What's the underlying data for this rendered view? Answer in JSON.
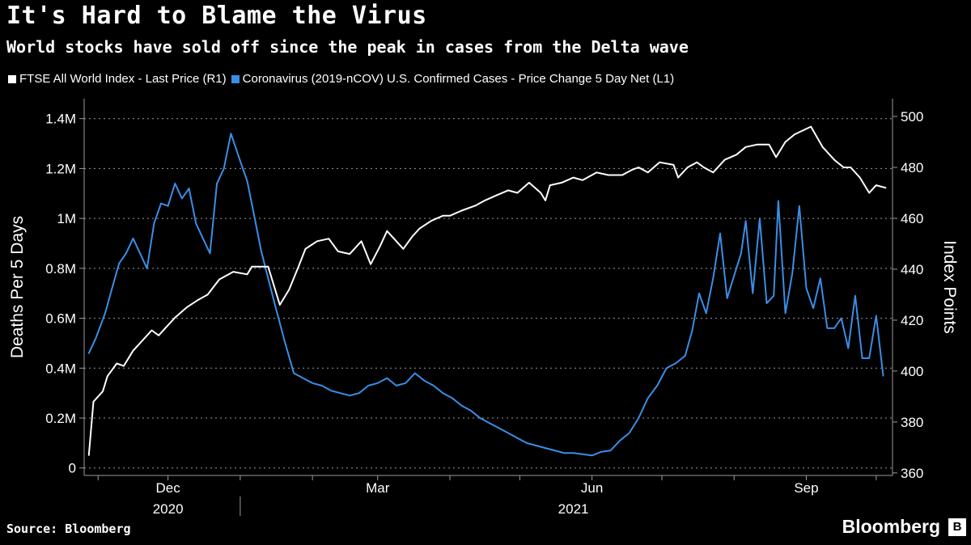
{
  "header": {
    "title": "It's Hard to Blame the Virus",
    "subtitle": "World stocks have sold off since the peak in cases from the Delta wave"
  },
  "footer": {
    "source": "Source: Bloomberg",
    "brand": "Bloomberg",
    "brand_mark": "B"
  },
  "colors": {
    "background": "#000000",
    "stocks": "#ffffff",
    "cases": "#3a8ee6",
    "grid": "#9a9a9a"
  },
  "chart_data": {
    "type": "line",
    "x_type": "date",
    "xlim": [
      "2020-10-26",
      "2021-10-08"
    ],
    "x_ticks": [
      {
        "date": "2020-12-01",
        "label": "Dec"
      },
      {
        "date": "2021-03-01",
        "label": "Mar"
      },
      {
        "date": "2021-06-01",
        "label": "Jun"
      },
      {
        "date": "2021-09-01",
        "label": "Sep"
      }
    ],
    "x_year_labels": [
      {
        "date": "2020-12-01",
        "label": "2020"
      },
      {
        "date": "2021-05-24",
        "label": "2021"
      }
    ],
    "x_year_divider": "2021-01-01",
    "left_axis": {
      "label": "Deaths Per 5 Days",
      "ylim": [
        -30000,
        1480000
      ],
      "ticks": [
        {
          "value": 0,
          "label": "0"
        },
        {
          "value": 200000,
          "label": "0.2M"
        },
        {
          "value": 400000,
          "label": "0.4M"
        },
        {
          "value": 600000,
          "label": "0.6M"
        },
        {
          "value": 800000,
          "label": "0.8M"
        },
        {
          "value": 1000000,
          "label": "1M"
        },
        {
          "value": 1200000,
          "label": "1.2M"
        },
        {
          "value": 1400000,
          "label": "1.4M"
        }
      ]
    },
    "right_axis": {
      "label": "Index Points",
      "ylim": [
        359,
        507
      ],
      "ticks": [
        {
          "value": 360,
          "label": "360"
        },
        {
          "value": 380,
          "label": "380"
        },
        {
          "value": 400,
          "label": "400"
        },
        {
          "value": 420,
          "label": "420"
        },
        {
          "value": 440,
          "label": "440"
        },
        {
          "value": 460,
          "label": "460"
        },
        {
          "value": 480,
          "label": "480"
        },
        {
          "value": 500,
          "label": "500"
        }
      ]
    },
    "grid": "horizontal-dashed",
    "legend_position": "top-left",
    "series": [
      {
        "name": "FTSE All World Index - Last Price (R1)",
        "axis": "right",
        "color": "#ffffff",
        "x": [
          "2020-10-28",
          "2020-10-30",
          "2020-11-03",
          "2020-11-05",
          "2020-11-09",
          "2020-11-12",
          "2020-11-16",
          "2020-11-19",
          "2020-11-24",
          "2020-11-27",
          "2020-12-01",
          "2020-12-04",
          "2020-12-09",
          "2020-12-14",
          "2020-12-18",
          "2020-12-23",
          "2020-12-29",
          "2021-01-04",
          "2021-01-06",
          "2021-01-08",
          "2021-01-13",
          "2021-01-18",
          "2021-01-22",
          "2021-01-26",
          "2021-01-29",
          "2021-02-03",
          "2021-02-08",
          "2021-02-12",
          "2021-02-17",
          "2021-02-22",
          "2021-02-26",
          "2021-03-02",
          "2021-03-05",
          "2021-03-09",
          "2021-03-12",
          "2021-03-16",
          "2021-03-19",
          "2021-03-24",
          "2021-03-29",
          "2021-04-01",
          "2021-04-06",
          "2021-04-12",
          "2021-04-16",
          "2021-04-21",
          "2021-04-26",
          "2021-04-30",
          "2021-05-05",
          "2021-05-10",
          "2021-05-12",
          "2021-05-14",
          "2021-05-19",
          "2021-05-24",
          "2021-05-28",
          "2021-06-03",
          "2021-06-08",
          "2021-06-14",
          "2021-06-18",
          "2021-06-21",
          "2021-06-25",
          "2021-06-30",
          "2021-07-06",
          "2021-07-08",
          "2021-07-12",
          "2021-07-16",
          "2021-07-19",
          "2021-07-23",
          "2021-07-28",
          "2021-08-02",
          "2021-08-06",
          "2021-08-11",
          "2021-08-16",
          "2021-08-19",
          "2021-08-23",
          "2021-08-27",
          "2021-09-03",
          "2021-09-08",
          "2021-09-13",
          "2021-09-17",
          "2021-09-20",
          "2021-09-24",
          "2021-09-28",
          "2021-10-01",
          "2021-10-05"
        ],
        "y": [
          367,
          388,
          392,
          398,
          403,
          402,
          408,
          411,
          416,
          414,
          418,
          421,
          425,
          428,
          430,
          436,
          439,
          438,
          441,
          441,
          441,
          426,
          432,
          441,
          448,
          451,
          452,
          447,
          446,
          451,
          442,
          449,
          455,
          451,
          448,
          453,
          456,
          459,
          461,
          461,
          463,
          465,
          467,
          469,
          471,
          470,
          474,
          470,
          467,
          473,
          474,
          476,
          475,
          478,
          477,
          477,
          479,
          480,
          478,
          482,
          481,
          476,
          480,
          482,
          480,
          478,
          483,
          485,
          488,
          489,
          489,
          484,
          490,
          493,
          496,
          488,
          483,
          480,
          480,
          476,
          470,
          473,
          472
        ]
      },
      {
        "name": "Coronavirus (2019-nCOV) U.S. Confirmed Cases - Price Change 5 Day Net (L1)",
        "axis": "left",
        "color": "#3a8ee6",
        "x": [
          "2020-10-28",
          "2020-10-31",
          "2020-11-04",
          "2020-11-07",
          "2020-11-10",
          "2020-11-13",
          "2020-11-16",
          "2020-11-19",
          "2020-11-22",
          "2020-11-25",
          "2020-11-28",
          "2020-12-01",
          "2020-12-04",
          "2020-12-07",
          "2020-12-10",
          "2020-12-13",
          "2020-12-16",
          "2020-12-19",
          "2020-12-22",
          "2020-12-25",
          "2020-12-28",
          "2021-01-01",
          "2021-01-04",
          "2021-01-07",
          "2021-01-10",
          "2021-01-13",
          "2021-01-16",
          "2021-01-20",
          "2021-01-24",
          "2021-01-28",
          "2021-02-01",
          "2021-02-05",
          "2021-02-09",
          "2021-02-13",
          "2021-02-17",
          "2021-02-21",
          "2021-02-25",
          "2021-03-01",
          "2021-03-05",
          "2021-03-09",
          "2021-03-13",
          "2021-03-17",
          "2021-03-21",
          "2021-03-25",
          "2021-03-29",
          "2021-04-02",
          "2021-04-06",
          "2021-04-10",
          "2021-04-14",
          "2021-04-18",
          "2021-04-22",
          "2021-04-26",
          "2021-04-30",
          "2021-05-04",
          "2021-05-08",
          "2021-05-12",
          "2021-05-16",
          "2021-05-20",
          "2021-05-24",
          "2021-05-28",
          "2021-06-01",
          "2021-06-05",
          "2021-06-09",
          "2021-06-13",
          "2021-06-17",
          "2021-06-21",
          "2021-06-25",
          "2021-06-29",
          "2021-07-03",
          "2021-07-07",
          "2021-07-11",
          "2021-07-14",
          "2021-07-17",
          "2021-07-20",
          "2021-07-23",
          "2021-07-26",
          "2021-07-29",
          "2021-08-01",
          "2021-08-04",
          "2021-08-06",
          "2021-08-09",
          "2021-08-12",
          "2021-08-15",
          "2021-08-18",
          "2021-08-20",
          "2021-08-23",
          "2021-08-26",
          "2021-08-29",
          "2021-09-01",
          "2021-09-04",
          "2021-09-07",
          "2021-09-10",
          "2021-09-13",
          "2021-09-16",
          "2021-09-19",
          "2021-09-22",
          "2021-09-25",
          "2021-09-28",
          "2021-10-01",
          "2021-10-04"
        ],
        "y": [
          460000,
          520000,
          620000,
          720000,
          820000,
          860000,
          920000,
          860000,
          800000,
          980000,
          1060000,
          1050000,
          1140000,
          1080000,
          1120000,
          980000,
          920000,
          860000,
          1140000,
          1200000,
          1340000,
          1230000,
          1150000,
          1010000,
          870000,
          760000,
          650000,
          510000,
          380000,
          360000,
          340000,
          330000,
          310000,
          300000,
          290000,
          300000,
          330000,
          340000,
          360000,
          330000,
          340000,
          380000,
          350000,
          330000,
          300000,
          280000,
          250000,
          230000,
          200000,
          180000,
          160000,
          140000,
          120000,
          100000,
          90000,
          80000,
          70000,
          60000,
          60000,
          55000,
          50000,
          65000,
          70000,
          110000,
          140000,
          200000,
          280000,
          330000,
          400000,
          420000,
          450000,
          550000,
          700000,
          620000,
          760000,
          940000,
          680000,
          770000,
          860000,
          990000,
          700000,
          1000000,
          660000,
          690000,
          1070000,
          620000,
          780000,
          1050000,
          720000,
          640000,
          760000,
          560000,
          560000,
          600000,
          480000,
          690000,
          440000,
          440000,
          610000,
          370000
        ]
      }
    ]
  }
}
